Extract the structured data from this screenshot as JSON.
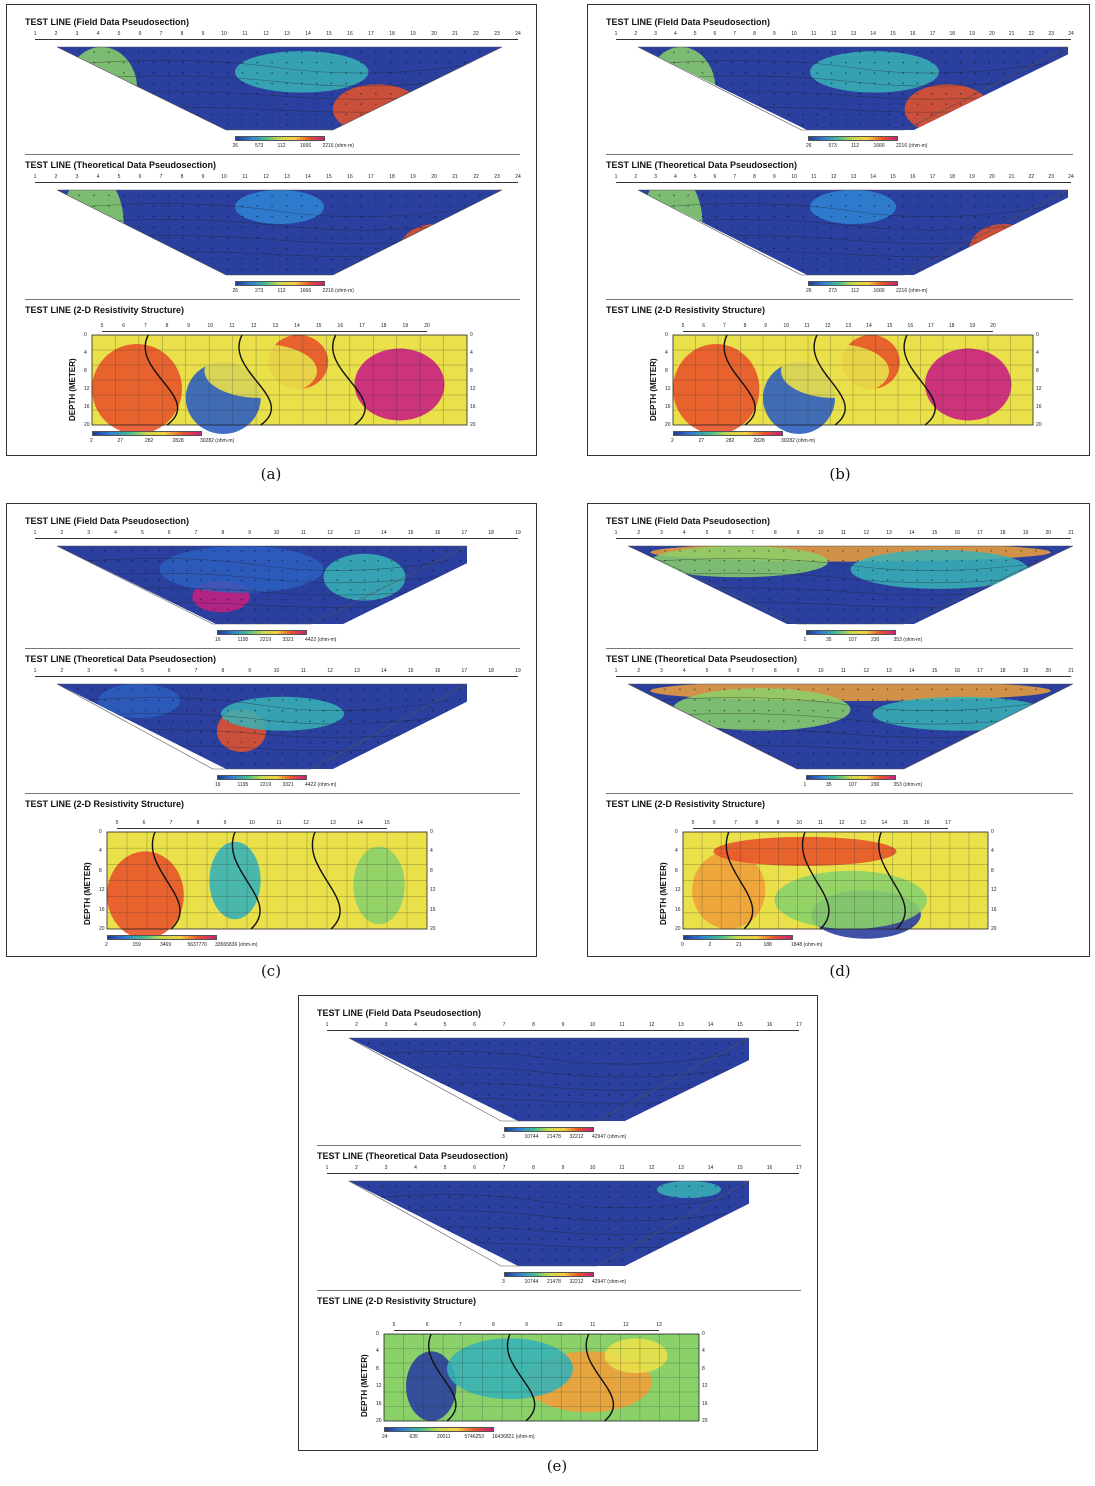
{
  "titles": {
    "field": "TEST LINE (Field Data Pseudosection)",
    "theoretical": "TEST LINE (Theoretical Data Pseudosection)",
    "structure": "TEST LINE (2-D Resistivity Structure)",
    "depth_axis": "DEPTH (METER)"
  },
  "colors": {
    "low": "#1f3a99",
    "mid1": "#2f7fd6",
    "mid2": "#3fbf8f",
    "mid3": "#c9d94a",
    "mid4": "#f4d040",
    "high1": "#e8542a",
    "high2": "#c9207f",
    "frame": "#333333"
  },
  "panels": [
    {
      "caption": "(a)",
      "electrodes": [
        "1",
        "2",
        "3",
        "4",
        "5",
        "6",
        "7",
        "8",
        "9",
        "10",
        "11",
        "12",
        "13",
        "14",
        "15",
        "16",
        "17",
        "18",
        "19",
        "20",
        "21",
        "22",
        "23",
        "24"
      ],
      "field_scale": [
        "26",
        "573",
        "112",
        "1666",
        "2216 (ohm-m)"
      ],
      "theo_scale": [
        "26",
        "273",
        "112",
        "1666",
        "2216 (ohm-m)"
      ],
      "struct_electrodes": [
        "5",
        "6",
        "7",
        "8",
        "9",
        "10",
        "11",
        "12",
        "13",
        "14",
        "15",
        "16",
        "17",
        "18",
        "19",
        "20"
      ],
      "struct_scale": [
        "2",
        "27",
        "282",
        "2828",
        "30282 (ohm-m)"
      ],
      "depth_ticks": [
        "0",
        "4",
        "8",
        "12",
        "16",
        "20"
      ]
    },
    {
      "caption": "(b)",
      "electrodes": [
        "1",
        "2",
        "3",
        "4",
        "5",
        "6",
        "7",
        "8",
        "9",
        "10",
        "11",
        "12",
        "13",
        "14",
        "15",
        "16",
        "17",
        "18",
        "19",
        "20",
        "21",
        "22",
        "23",
        "24"
      ],
      "field_scale": [
        "26",
        "573",
        "112",
        "1666",
        "2216 (ohm-m)"
      ],
      "theo_scale": [
        "26",
        "273",
        "112",
        "1666",
        "2216 (ohm-m)"
      ],
      "struct_electrodes": [
        "5",
        "6",
        "7",
        "8",
        "9",
        "10",
        "11",
        "12",
        "13",
        "14",
        "15",
        "16",
        "17",
        "18",
        "19",
        "20"
      ],
      "struct_scale": [
        "2",
        "27",
        "282",
        "2828",
        "30282 (ohm-m)"
      ],
      "depth_ticks": [
        "0",
        "4",
        "8",
        "12",
        "16",
        "20"
      ]
    },
    {
      "caption": "(c)",
      "electrodes": [
        "1",
        "2",
        "3",
        "4",
        "5",
        "6",
        "7",
        "8",
        "9",
        "10",
        "11",
        "12",
        "13",
        "14",
        "15",
        "16",
        "17",
        "18",
        "19"
      ],
      "field_scale": [
        "16",
        "1195",
        "2219",
        "3321",
        "4422 (ohm-m)"
      ],
      "theo_scale": [
        "16",
        "1195",
        "2219",
        "3321",
        "4422 (ohm-m)"
      ],
      "struct_electrodes": [
        "5",
        "6",
        "7",
        "8",
        "9",
        "10",
        "11",
        "12",
        "13",
        "14",
        "15"
      ],
      "struct_scale": [
        "2",
        "159",
        "3469",
        "5637770",
        "33565836 (ohm-m)"
      ],
      "depth_ticks": [
        "0",
        "4",
        "8",
        "12",
        "16",
        "20"
      ]
    },
    {
      "caption": "(d)",
      "electrodes": [
        "1",
        "2",
        "3",
        "4",
        "5",
        "6",
        "7",
        "8",
        "9",
        "10",
        "11",
        "12",
        "13",
        "14",
        "15",
        "16",
        "17",
        "18",
        "19",
        "20",
        "21"
      ],
      "field_scale": [
        "1",
        "35",
        "107",
        "230",
        "353 (ohm-m)"
      ],
      "theo_scale": [
        "1",
        "35",
        "107",
        "230",
        "353 (ohm-m)"
      ],
      "struct_electrodes": [
        "5",
        "6",
        "7",
        "8",
        "9",
        "10",
        "11",
        "12",
        "13",
        "14",
        "15",
        "16",
        "17"
      ],
      "struct_scale": [
        "0",
        "2",
        "21",
        "188",
        "1848 (ohm-m)"
      ],
      "depth_ticks": [
        "0",
        "4",
        "8",
        "12",
        "16",
        "20"
      ]
    },
    {
      "caption": "(e)",
      "electrodes": [
        "1",
        "2",
        "3",
        "4",
        "5",
        "6",
        "7",
        "8",
        "9",
        "10",
        "11",
        "12",
        "13",
        "14",
        "15",
        "16",
        "17"
      ],
      "field_scale": [
        "3",
        "10744",
        "21478",
        "32212",
        "42947 (ohm-m)"
      ],
      "theo_scale": [
        "3",
        "10744",
        "21478",
        "32212",
        "42947 (ohm-m)"
      ],
      "struct_electrodes": [
        "5",
        "6",
        "7",
        "8",
        "9",
        "10",
        "11",
        "12",
        "13"
      ],
      "struct_scale": [
        "24",
        "635",
        "20011",
        "5746253",
        "16436821 (ohm-m)"
      ],
      "depth_ticks": [
        "0",
        "4",
        "8",
        "12",
        "16",
        "20"
      ]
    }
  ]
}
